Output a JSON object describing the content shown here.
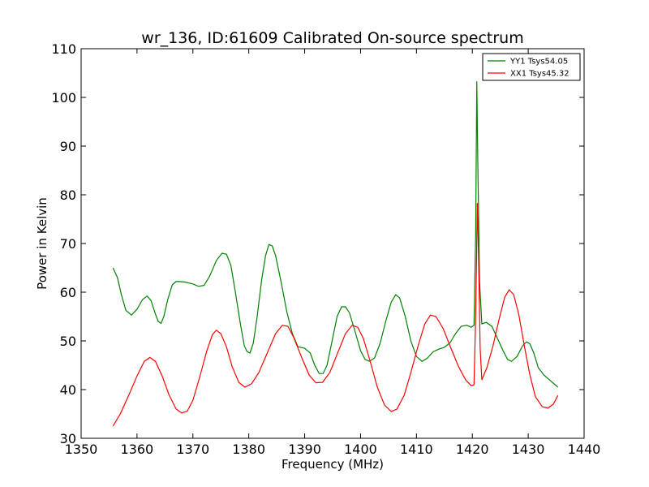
{
  "chart_data": {
    "type": "line",
    "title": "wr_136, ID:61609 Calibrated On-source spectrum",
    "xlabel": "Frequency (MHz)",
    "ylabel": "Power in Kelvin",
    "xlim": [
      1350,
      1440
    ],
    "ylim": [
      30,
      110
    ],
    "xticks": [
      "1350",
      "1360",
      "1370",
      "1380",
      "1390",
      "1400",
      "1410",
      "1420",
      "1430",
      "1440"
    ],
    "yticks": [
      "30",
      "40",
      "50",
      "60",
      "70",
      "80",
      "90",
      "100",
      "110"
    ],
    "grid": false,
    "legend_position": "top-right",
    "series": [
      {
        "name": "YY1 Tsys54.05",
        "color": "#008000",
        "points": [
          [
            1355.7,
            65.0
          ],
          [
            1356.5,
            63.0
          ],
          [
            1357.2,
            59.5
          ],
          [
            1358.0,
            56.3
          ],
          [
            1359.0,
            55.3
          ],
          [
            1360.0,
            56.5
          ],
          [
            1361.0,
            58.5
          ],
          [
            1361.8,
            59.2
          ],
          [
            1362.5,
            58.3
          ],
          [
            1363.3,
            55.5
          ],
          [
            1363.8,
            54.0
          ],
          [
            1364.3,
            53.6
          ],
          [
            1364.8,
            55.0
          ],
          [
            1365.5,
            58.5
          ],
          [
            1366.3,
            61.5
          ],
          [
            1367.0,
            62.2
          ],
          [
            1368.5,
            62.1
          ],
          [
            1370.0,
            61.7
          ],
          [
            1371.0,
            61.2
          ],
          [
            1372.0,
            61.4
          ],
          [
            1373.0,
            63.3
          ],
          [
            1374.2,
            66.5
          ],
          [
            1375.2,
            68.0
          ],
          [
            1376.0,
            67.8
          ],
          [
            1376.8,
            65.5
          ],
          [
            1377.6,
            60.0
          ],
          [
            1378.5,
            53.5
          ],
          [
            1379.2,
            49.0
          ],
          [
            1379.7,
            47.8
          ],
          [
            1380.2,
            47.5
          ],
          [
            1380.8,
            49.5
          ],
          [
            1381.5,
            55.0
          ],
          [
            1382.3,
            62.5
          ],
          [
            1383.0,
            67.5
          ],
          [
            1383.6,
            69.8
          ],
          [
            1384.2,
            69.5
          ],
          [
            1384.8,
            67.5
          ],
          [
            1385.8,
            62.0
          ],
          [
            1386.8,
            56.0
          ],
          [
            1387.8,
            51.5
          ],
          [
            1388.8,
            48.8
          ],
          [
            1390.0,
            48.5
          ],
          [
            1391.0,
            47.5
          ],
          [
            1391.8,
            45.0
          ],
          [
            1392.6,
            43.3
          ],
          [
            1393.3,
            43.3
          ],
          [
            1394.0,
            45.0
          ],
          [
            1395.0,
            50.5
          ],
          [
            1395.8,
            55.0
          ],
          [
            1396.6,
            57.0
          ],
          [
            1397.3,
            57.0
          ],
          [
            1398.0,
            55.8
          ],
          [
            1399.0,
            52.0
          ],
          [
            1400.0,
            48.0
          ],
          [
            1400.8,
            46.2
          ],
          [
            1401.6,
            45.8
          ],
          [
            1402.5,
            46.5
          ],
          [
            1403.5,
            49.5
          ],
          [
            1404.5,
            54.0
          ],
          [
            1405.5,
            58.0
          ],
          [
            1406.3,
            59.5
          ],
          [
            1407.0,
            58.8
          ],
          [
            1408.0,
            55.0
          ],
          [
            1409.0,
            50.0
          ],
          [
            1410.0,
            46.8
          ],
          [
            1411.0,
            45.8
          ],
          [
            1412.0,
            46.5
          ],
          [
            1413.0,
            47.8
          ],
          [
            1414.0,
            48.3
          ],
          [
            1415.0,
            48.7
          ],
          [
            1416.0,
            49.6
          ],
          [
            1417.0,
            51.5
          ],
          [
            1418.0,
            53.0
          ],
          [
            1419.0,
            53.2
          ],
          [
            1419.8,
            52.8
          ],
          [
            1420.3,
            53.2
          ],
          [
            1420.6,
            72.0
          ],
          [
            1420.8,
            103.3
          ],
          [
            1421.0,
            85.0
          ],
          [
            1421.3,
            62.0
          ],
          [
            1421.7,
            53.5
          ],
          [
            1422.5,
            53.8
          ],
          [
            1423.5,
            53.0
          ],
          [
            1424.5,
            50.5
          ],
          [
            1425.5,
            48.0
          ],
          [
            1426.3,
            46.2
          ],
          [
            1427.0,
            45.8
          ],
          [
            1428.0,
            46.8
          ],
          [
            1429.0,
            49.0
          ],
          [
            1429.7,
            49.8
          ],
          [
            1430.3,
            49.4
          ],
          [
            1431.0,
            47.5
          ],
          [
            1431.8,
            44.5
          ],
          [
            1432.8,
            43.0
          ],
          [
            1434.0,
            41.8
          ],
          [
            1435.3,
            40.5
          ]
        ]
      },
      {
        "name": "XX1 Tsys45.32",
        "color": "#ff0000",
        "points": [
          [
            1355.7,
            32.5
          ],
          [
            1357.0,
            35.0
          ],
          [
            1358.5,
            38.8
          ],
          [
            1360.0,
            42.8
          ],
          [
            1361.3,
            45.8
          ],
          [
            1362.3,
            46.6
          ],
          [
            1363.3,
            45.8
          ],
          [
            1364.5,
            42.8
          ],
          [
            1365.7,
            39.0
          ],
          [
            1367.0,
            36.0
          ],
          [
            1368.0,
            35.2
          ],
          [
            1369.0,
            35.6
          ],
          [
            1370.0,
            37.8
          ],
          [
            1371.2,
            42.5
          ],
          [
            1372.5,
            48.0
          ],
          [
            1373.5,
            51.3
          ],
          [
            1374.2,
            52.2
          ],
          [
            1375.0,
            51.5
          ],
          [
            1376.0,
            48.8
          ],
          [
            1377.0,
            44.8
          ],
          [
            1378.2,
            41.5
          ],
          [
            1379.3,
            40.5
          ],
          [
            1380.5,
            41.2
          ],
          [
            1381.8,
            43.5
          ],
          [
            1383.3,
            47.5
          ],
          [
            1384.8,
            51.5
          ],
          [
            1386.0,
            53.2
          ],
          [
            1387.0,
            53.0
          ],
          [
            1388.0,
            50.8
          ],
          [
            1389.5,
            46.5
          ],
          [
            1390.8,
            43.0
          ],
          [
            1392.0,
            41.4
          ],
          [
            1393.2,
            41.5
          ],
          [
            1394.5,
            43.5
          ],
          [
            1396.0,
            47.8
          ],
          [
            1397.3,
            51.5
          ],
          [
            1398.5,
            53.2
          ],
          [
            1399.5,
            52.8
          ],
          [
            1400.5,
            50.5
          ],
          [
            1401.8,
            45.5
          ],
          [
            1403.0,
            40.5
          ],
          [
            1404.3,
            36.8
          ],
          [
            1405.5,
            35.5
          ],
          [
            1406.5,
            36.0
          ],
          [
            1407.8,
            38.8
          ],
          [
            1409.0,
            43.5
          ],
          [
            1410.3,
            49.0
          ],
          [
            1411.5,
            53.5
          ],
          [
            1412.5,
            55.3
          ],
          [
            1413.5,
            55.0
          ],
          [
            1414.8,
            52.5
          ],
          [
            1416.0,
            49.0
          ],
          [
            1417.5,
            44.8
          ],
          [
            1418.8,
            42.0
          ],
          [
            1419.8,
            40.8
          ],
          [
            1420.3,
            41.0
          ],
          [
            1420.6,
            55.0
          ],
          [
            1420.9,
            78.3
          ],
          [
            1421.1,
            68.0
          ],
          [
            1421.4,
            48.5
          ],
          [
            1421.7,
            42.0
          ],
          [
            1422.6,
            44.5
          ],
          [
            1423.7,
            49.0
          ],
          [
            1424.8,
            54.5
          ],
          [
            1425.8,
            59.0
          ],
          [
            1426.6,
            60.5
          ],
          [
            1427.4,
            59.5
          ],
          [
            1428.3,
            55.5
          ],
          [
            1429.3,
            49.0
          ],
          [
            1430.3,
            43.0
          ],
          [
            1431.3,
            38.5
          ],
          [
            1432.5,
            36.5
          ],
          [
            1433.5,
            36.2
          ],
          [
            1434.5,
            37.0
          ],
          [
            1435.3,
            38.8
          ]
        ]
      }
    ]
  }
}
